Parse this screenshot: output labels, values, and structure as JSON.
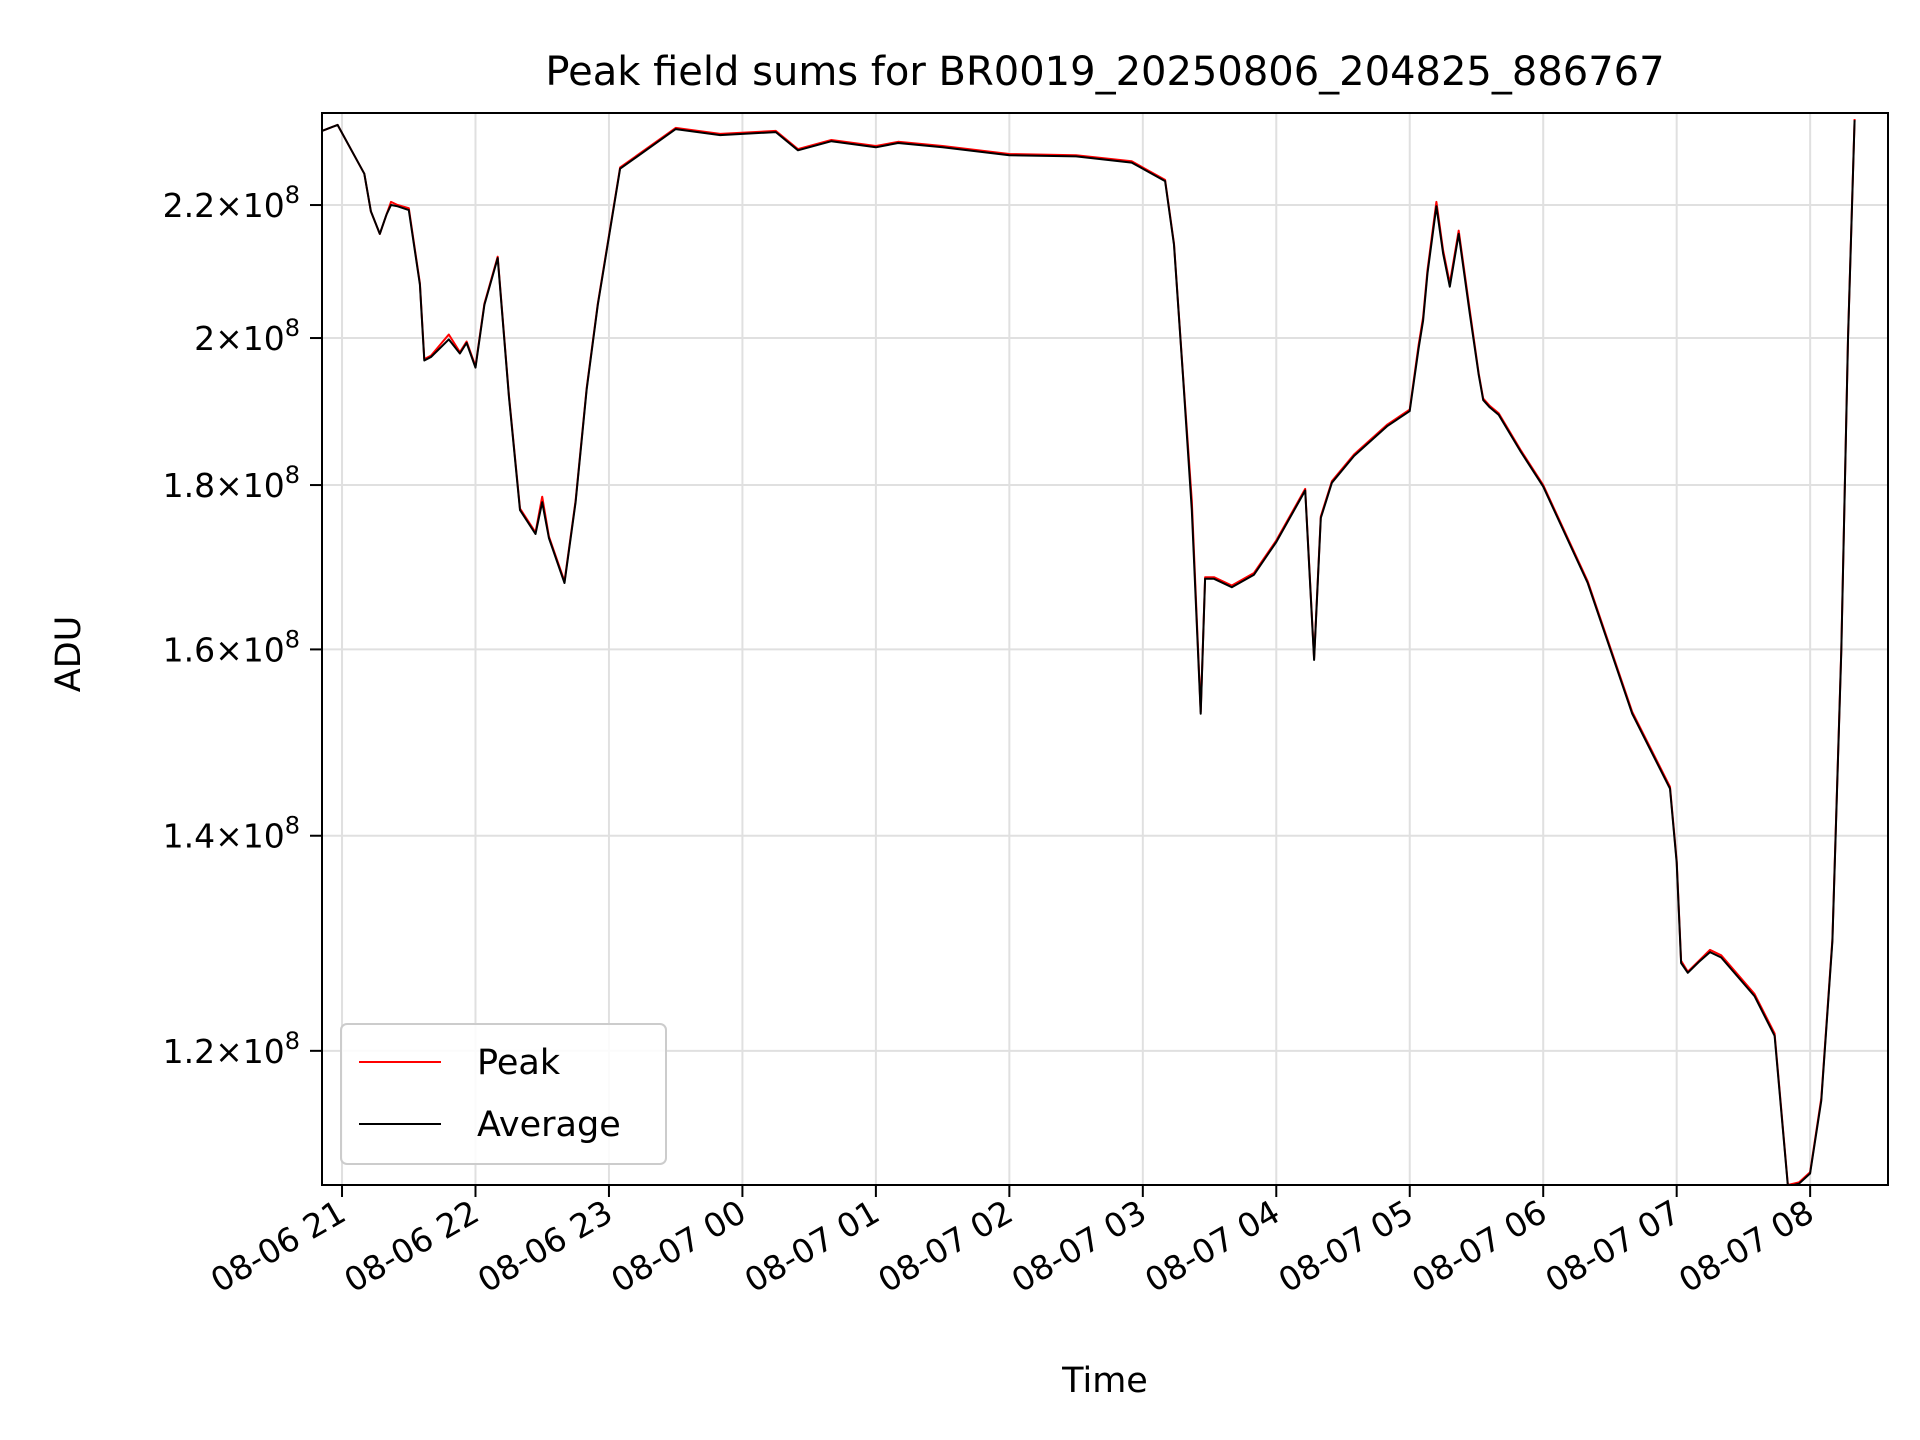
{
  "chart_data": {
    "type": "line",
    "title": "Peak field sums for BR0019_20250806_204825_886767",
    "xlabel": "Time",
    "ylabel": "ADU",
    "y_scale": "log",
    "ylim": [
      109000000,
      235000000
    ],
    "xlim": [
      "2025-08-06 20:51",
      "2025-08-07 08:35"
    ],
    "grid": true,
    "legend_position": "lower-left",
    "x_ticks": [
      {
        "t": "2025-08-06 21:00",
        "label": "08-06 21"
      },
      {
        "t": "2025-08-06 22:00",
        "label": "08-06 22"
      },
      {
        "t": "2025-08-06 23:00",
        "label": "08-06 23"
      },
      {
        "t": "2025-08-07 00:00",
        "label": "08-07 00"
      },
      {
        "t": "2025-08-07 01:00",
        "label": "08-07 01"
      },
      {
        "t": "2025-08-07 02:00",
        "label": "08-07 02"
      },
      {
        "t": "2025-08-07 03:00",
        "label": "08-07 03"
      },
      {
        "t": "2025-08-07 04:00",
        "label": "08-07 04"
      },
      {
        "t": "2025-08-07 05:00",
        "label": "08-07 05"
      },
      {
        "t": "2025-08-07 06:00",
        "label": "08-07 06"
      },
      {
        "t": "2025-08-07 07:00",
        "label": "08-07 07"
      },
      {
        "t": "2025-08-07 08:00",
        "label": "08-07 08"
      }
    ],
    "y_ticks": [
      {
        "value": 120000000,
        "mantissa": "1.2",
        "exponent": "8"
      },
      {
        "value": 140000000,
        "mantissa": "1.4",
        "exponent": "8"
      },
      {
        "value": 160000000,
        "mantissa": "1.6",
        "exponent": "8"
      },
      {
        "value": 180000000,
        "mantissa": "1.8",
        "exponent": "8"
      },
      {
        "value": 200000000,
        "mantissa": "2",
        "exponent": "8"
      },
      {
        "value": 220000000,
        "mantissa": "2.2",
        "exponent": "8"
      }
    ],
    "y_tick_separator": "×10",
    "series": [
      {
        "name": "Peak",
        "color": "#ff0000",
        "x": [
          "2025-08-06 20:51",
          "2025-08-06 20:58",
          "2025-08-06 21:10",
          "2025-08-06 21:13",
          "2025-08-06 21:17",
          "2025-08-06 21:20",
          "2025-08-06 21:22",
          "2025-08-06 21:25",
          "2025-08-06 21:30",
          "2025-08-06 21:35",
          "2025-08-06 21:37",
          "2025-08-06 21:40",
          "2025-08-06 21:48",
          "2025-08-06 21:53",
          "2025-08-06 21:56",
          "2025-08-06 22:00",
          "2025-08-06 22:04",
          "2025-08-06 22:10",
          "2025-08-06 22:15",
          "2025-08-06 22:20",
          "2025-08-06 22:27",
          "2025-08-06 22:30",
          "2025-08-06 22:33",
          "2025-08-06 22:40",
          "2025-08-06 22:45",
          "2025-08-06 22:50",
          "2025-08-06 22:55",
          "2025-08-06 23:05",
          "2025-08-06 23:30",
          "2025-08-06 23:50",
          "2025-08-07 00:15",
          "2025-08-07 00:25",
          "2025-08-07 00:40",
          "2025-08-07 01:00",
          "2025-08-07 01:10",
          "2025-08-07 01:30",
          "2025-08-07 02:00",
          "2025-08-07 02:30",
          "2025-08-07 02:55",
          "2025-08-07 03:10",
          "2025-08-07 03:14",
          "2025-08-07 03:18",
          "2025-08-07 03:22",
          "2025-08-07 03:26",
          "2025-08-07 03:28",
          "2025-08-07 03:32",
          "2025-08-07 03:40",
          "2025-08-07 03:50",
          "2025-08-07 04:00",
          "2025-08-07 04:13",
          "2025-08-07 04:17",
          "2025-08-07 04:20",
          "2025-08-07 04:25",
          "2025-08-07 04:35",
          "2025-08-07 04:50",
          "2025-08-07 05:00",
          "2025-08-07 05:04",
          "2025-08-07 05:06",
          "2025-08-07 05:08",
          "2025-08-07 05:12",
          "2025-08-07 05:15",
          "2025-08-07 05:18",
          "2025-08-07 05:22",
          "2025-08-07 05:27",
          "2025-08-07 05:31",
          "2025-08-07 05:33",
          "2025-08-07 05:36",
          "2025-08-07 05:40",
          "2025-08-07 05:50",
          "2025-08-07 06:00",
          "2025-08-07 06:20",
          "2025-08-07 06:40",
          "2025-08-07 06:57",
          "2025-08-07 07:00",
          "2025-08-07 07:02",
          "2025-08-07 07:05",
          "2025-08-07 07:10",
          "2025-08-07 07:15",
          "2025-08-07 07:20",
          "2025-08-07 07:35",
          "2025-08-07 07:44",
          "2025-08-07 07:50",
          "2025-08-07 07:55",
          "2025-08-07 08:00",
          "2025-08-07 08:05",
          "2025-08-07 08:10",
          "2025-08-07 08:14",
          "2025-08-07 08:17",
          "2025-08-07 08:20"
        ],
        "values": [
          232000000,
          233000000,
          225000000,
          219000000,
          215500000,
          218500000,
          220500000,
          220000000,
          219500000,
          208000000,
          197000000,
          197500000,
          200500000,
          198000000,
          199500000,
          196000000,
          205000000,
          212000000,
          192000000,
          177000000,
          174000000,
          178500000,
          173500000,
          168000000,
          178000000,
          193000000,
          205000000,
          226000000,
          232500000,
          231500000,
          232000000,
          229000000,
          230500000,
          229500000,
          230200000,
          229500000,
          228200000,
          228000000,
          227000000,
          224000000,
          214000000,
          195000000,
          178000000,
          153000000,
          168500000,
          168500000,
          167500000,
          169000000,
          173000000,
          179500000,
          159000000,
          176000000,
          180500000,
          184000000,
          188000000,
          190000000,
          199000000,
          203000000,
          210000000,
          220500000,
          213000000,
          208000000,
          216000000,
          204000000,
          195000000,
          191500000,
          190500000,
          189500000,
          184500000,
          180000000,
          168000000,
          153000000,
          145000000,
          137500000,
          128000000,
          127000000,
          128000000,
          129000000,
          128500000,
          125000000,
          121500000,
          109000000,
          109200000,
          110000000,
          116000000,
          130000000,
          160000000,
          200000000,
          234000000
        ]
      },
      {
        "name": "Average",
        "color": "#000000",
        "x": [
          "2025-08-06 20:51",
          "2025-08-06 20:58",
          "2025-08-06 21:10",
          "2025-08-06 21:13",
          "2025-08-06 21:17",
          "2025-08-06 21:20",
          "2025-08-06 21:22",
          "2025-08-06 21:25",
          "2025-08-06 21:30",
          "2025-08-06 21:35",
          "2025-08-06 21:37",
          "2025-08-06 21:40",
          "2025-08-06 21:48",
          "2025-08-06 21:53",
          "2025-08-06 21:56",
          "2025-08-06 22:00",
          "2025-08-06 22:04",
          "2025-08-06 22:10",
          "2025-08-06 22:15",
          "2025-08-06 22:20",
          "2025-08-06 22:27",
          "2025-08-06 22:30",
          "2025-08-06 22:33",
          "2025-08-06 22:40",
          "2025-08-06 22:45",
          "2025-08-06 22:50",
          "2025-08-06 22:55",
          "2025-08-06 23:05",
          "2025-08-06 23:30",
          "2025-08-06 23:50",
          "2025-08-07 00:15",
          "2025-08-07 00:25",
          "2025-08-07 00:40",
          "2025-08-07 01:00",
          "2025-08-07 01:10",
          "2025-08-07 01:30",
          "2025-08-07 02:00",
          "2025-08-07 02:30",
          "2025-08-07 02:55",
          "2025-08-07 03:10",
          "2025-08-07 03:14",
          "2025-08-07 03:18",
          "2025-08-07 03:22",
          "2025-08-07 03:26",
          "2025-08-07 03:28",
          "2025-08-07 03:32",
          "2025-08-07 03:40",
          "2025-08-07 03:50",
          "2025-08-07 04:00",
          "2025-08-07 04:13",
          "2025-08-07 04:17",
          "2025-08-07 04:20",
          "2025-08-07 04:25",
          "2025-08-07 04:35",
          "2025-08-07 04:50",
          "2025-08-07 05:00",
          "2025-08-07 05:04",
          "2025-08-07 05:06",
          "2025-08-07 05:08",
          "2025-08-07 05:12",
          "2025-08-07 05:15",
          "2025-08-07 05:18",
          "2025-08-07 05:22",
          "2025-08-07 05:27",
          "2025-08-07 05:31",
          "2025-08-07 05:33",
          "2025-08-07 05:36",
          "2025-08-07 05:40",
          "2025-08-07 05:50",
          "2025-08-07 06:00",
          "2025-08-07 06:20",
          "2025-08-07 06:40",
          "2025-08-07 06:57",
          "2025-08-07 07:00",
          "2025-08-07 07:02",
          "2025-08-07 07:05",
          "2025-08-07 07:10",
          "2025-08-07 07:15",
          "2025-08-07 07:20",
          "2025-08-07 07:35",
          "2025-08-07 07:44",
          "2025-08-07 07:50",
          "2025-08-07 07:55",
          "2025-08-07 08:00",
          "2025-08-07 08:05",
          "2025-08-07 08:10",
          "2025-08-07 08:14",
          "2025-08-07 08:17",
          "2025-08-07 08:20"
        ],
        "values": [
          232000000,
          233000000,
          225000000,
          219000000,
          215500000,
          218500000,
          220000000,
          219800000,
          219200000,
          207800000,
          196800000,
          197300000,
          199800000,
          197800000,
          199300000,
          195800000,
          204800000,
          211800000,
          191800000,
          176800000,
          173800000,
          177800000,
          173300000,
          167800000,
          177800000,
          192800000,
          204800000,
          225800000,
          232300000,
          231300000,
          231800000,
          228800000,
          230300000,
          229300000,
          230000000,
          229300000,
          228000000,
          227800000,
          226800000,
          223800000,
          213800000,
          194800000,
          176800000,
          152800000,
          168300000,
          168300000,
          167300000,
          168800000,
          172800000,
          179300000,
          158800000,
          175800000,
          180300000,
          183800000,
          187800000,
          189800000,
          198500000,
          202500000,
          209500000,
          219800000,
          212500000,
          207500000,
          215500000,
          203500000,
          194800000,
          191300000,
          190300000,
          189300000,
          184300000,
          179800000,
          167800000,
          152800000,
          144800000,
          137300000,
          127800000,
          126900000,
          127900000,
          128800000,
          128300000,
          124800000,
          121300000,
          108900000,
          109100000,
          109900000,
          115800000,
          129800000,
          159800000,
          199800000,
          233800000
        ]
      }
    ]
  }
}
